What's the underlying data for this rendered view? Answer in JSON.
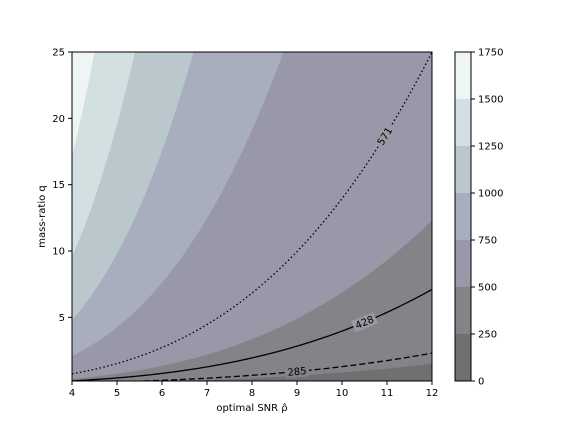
{
  "chart_data": {
    "type": "contour",
    "title": "",
    "xlabel": "optimal SNR ρ̂",
    "ylabel": "mass-ratio q",
    "xlim": [
      4,
      12
    ],
    "ylim": [
      0.2,
      25
    ],
    "xticks": [
      4,
      5,
      6,
      7,
      8,
      9,
      10,
      11,
      12
    ],
    "yticks": [
      5,
      10,
      15,
      20,
      25
    ],
    "filled_levels": [
      0,
      250,
      500,
      750,
      1000,
      1250,
      1500,
      1750
    ],
    "level_colors": [
      "#707073",
      "#848488",
      "#9898a8",
      "#a9aebe",
      "#bac8cd",
      "#d2e0e1",
      "#eef5f4"
    ],
    "colorbar_ticks": [
      0,
      250,
      500,
      750,
      1000,
      1250,
      1500,
      1750
    ],
    "contour_lines": [
      {
        "label": "571",
        "style": "dotted",
        "ref_rho": 12,
        "ref_q": 25
      },
      {
        "label": "428",
        "style": "solid",
        "ref_rho": 12,
        "ref_q": 7.1
      },
      {
        "label": "285",
        "style": "dashed",
        "ref_rho": 12,
        "ref_q": 2.3
      }
    ],
    "boundaries": [
      {
        "level": 250,
        "ref_rho": 12,
        "ref_q": 1.5
      },
      {
        "level": 500,
        "ref_rho": 12,
        "ref_q": 12.3
      },
      {
        "level": 750,
        "ref_rho": 8.7,
        "ref_q": 25
      },
      {
        "level": 1000,
        "ref_rho": 6.7,
        "ref_q": 25
      },
      {
        "level": 1250,
        "ref_rho": 5.4,
        "ref_q": 25
      },
      {
        "level": 1500,
        "ref_rho": 4.5,
        "ref_q": 25
      }
    ],
    "grid": false
  }
}
